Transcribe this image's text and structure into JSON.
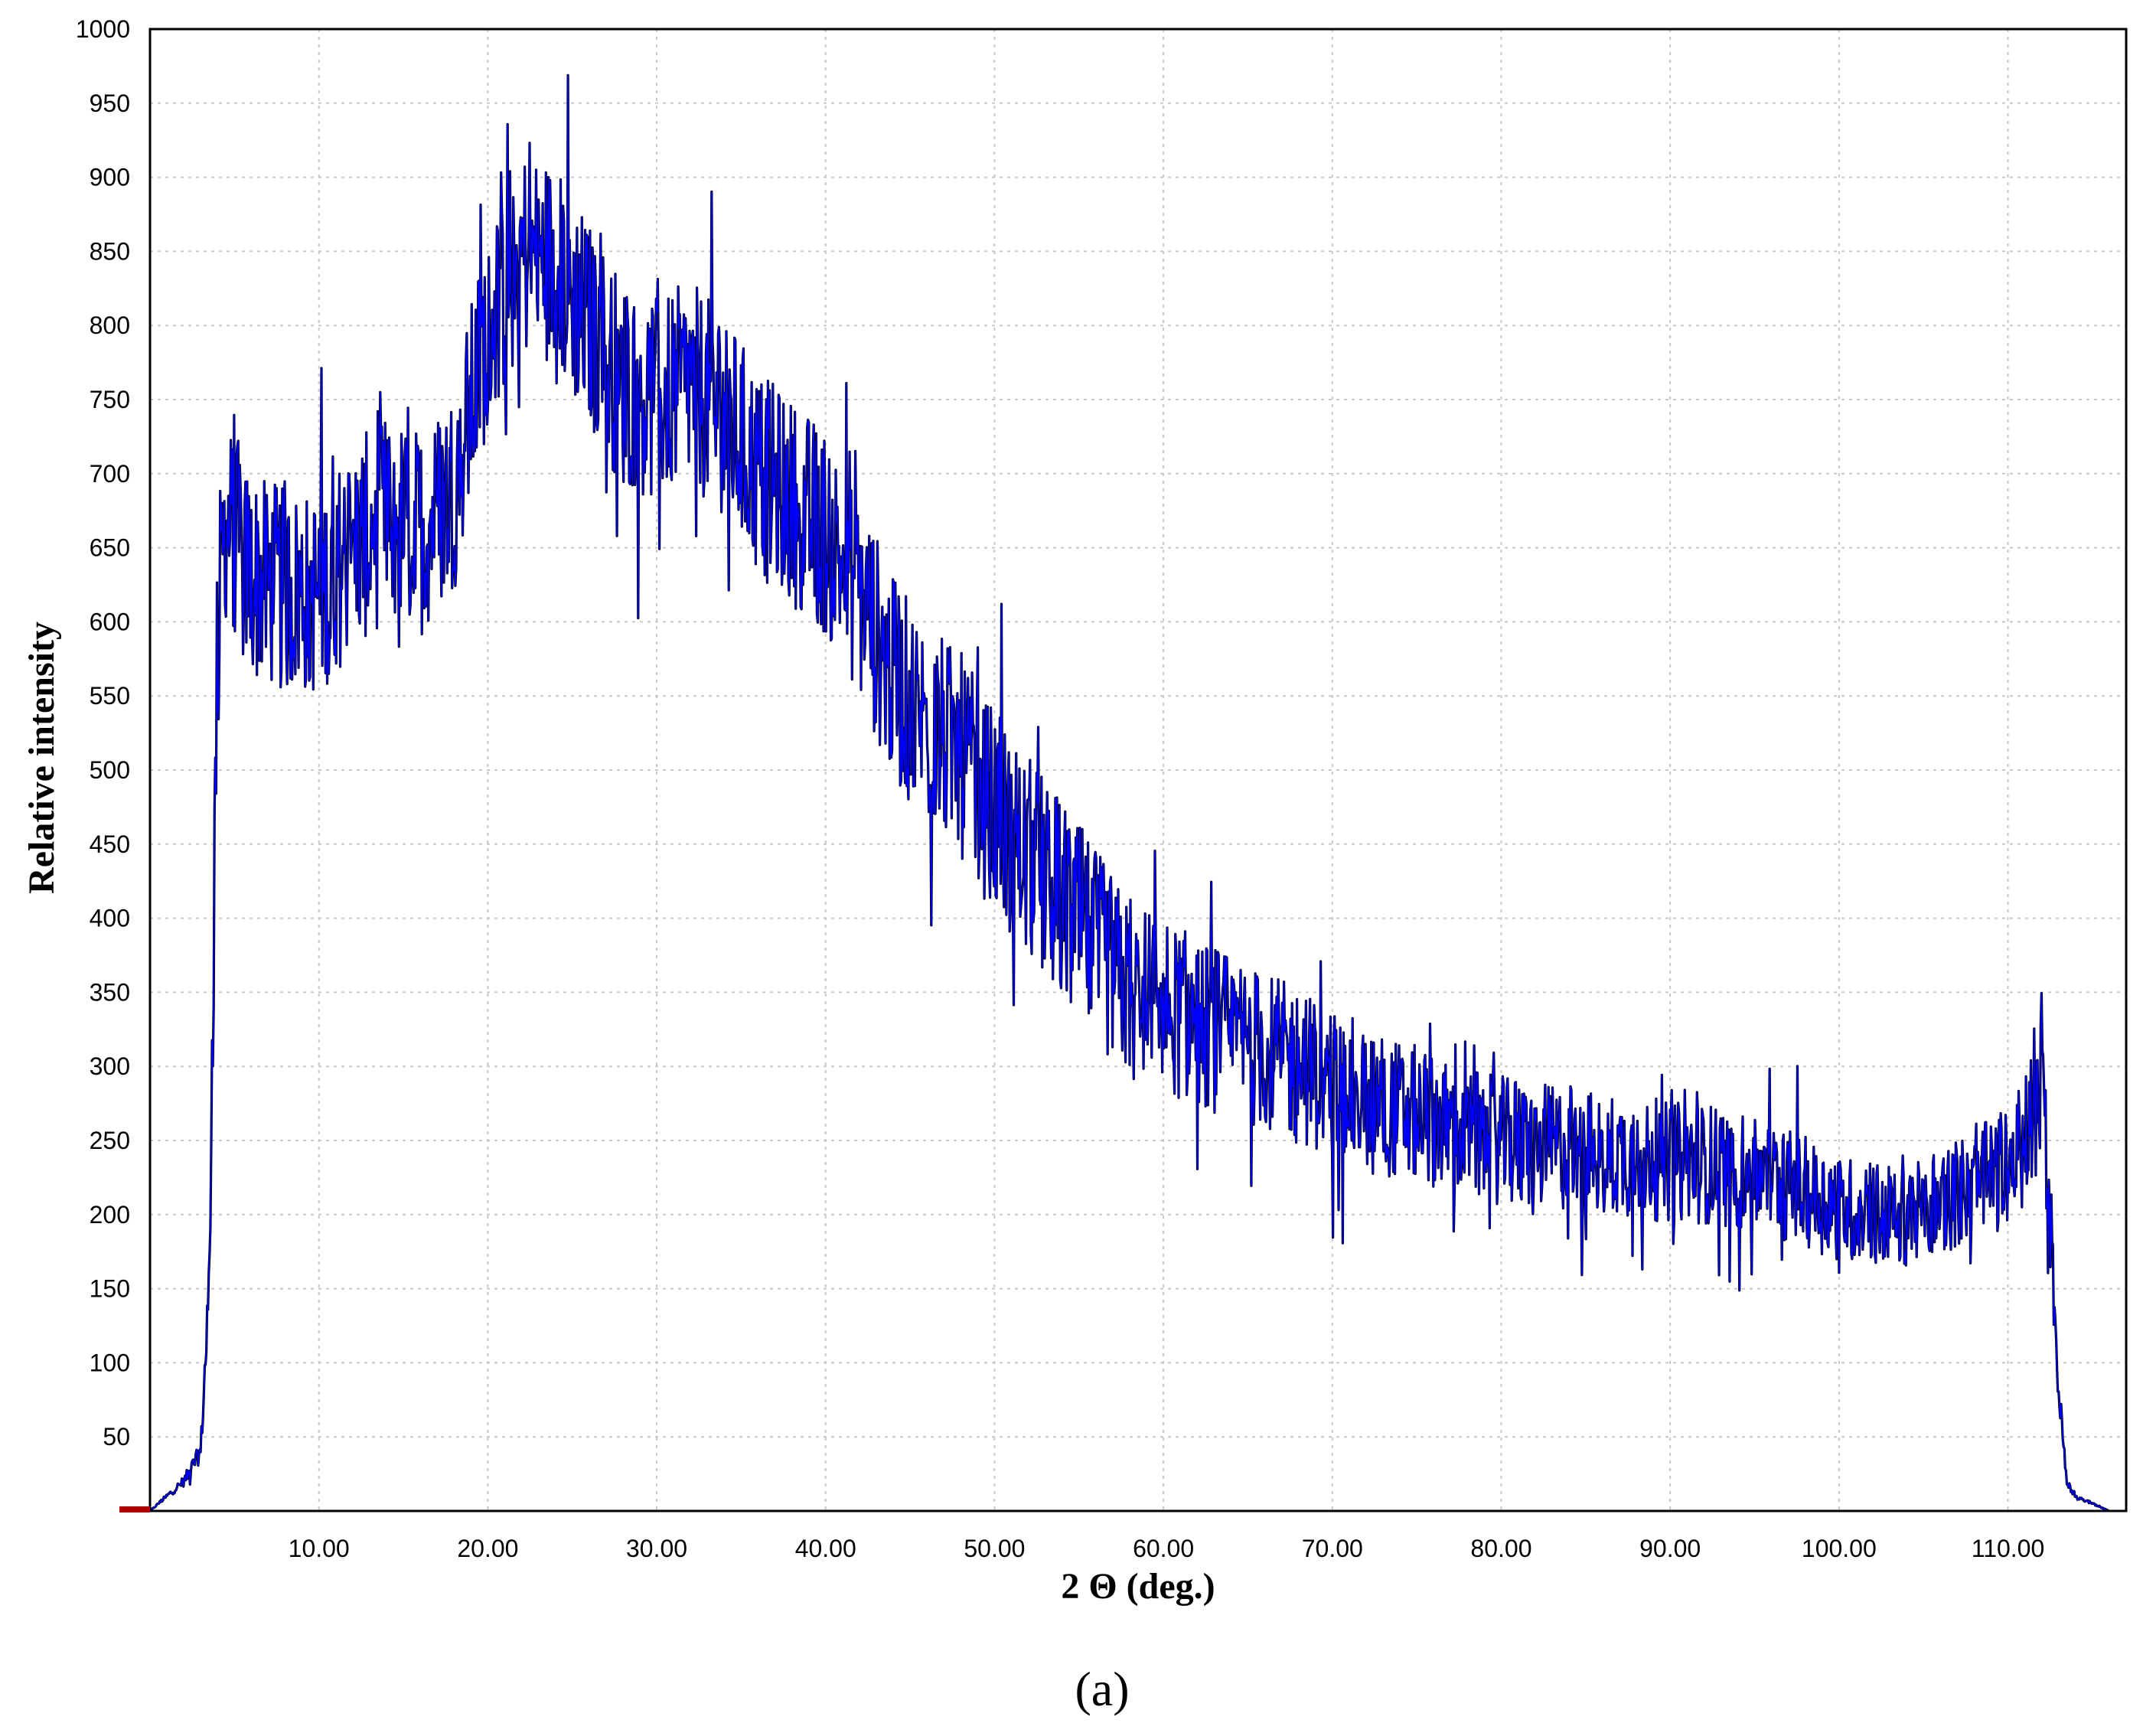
{
  "colors": {
    "line": "#0000ff",
    "outline": "#000000",
    "grid": "#c8c8c8",
    "marker": "#b00000"
  },
  "caption": "(a)",
  "chart_data": {
    "type": "line",
    "title": "",
    "xlabel": "2 Θ (deg.)",
    "ylabel": "Relative intensity",
    "xlim": [
      0,
      117
    ],
    "ylim": [
      0,
      1000
    ],
    "grid": true,
    "x_ticks": [
      "10.00",
      "20.00",
      "30.00",
      "40.00",
      "50.00",
      "60.00",
      "70.00",
      "80.00",
      "90.00",
      "100.00",
      "110.00"
    ],
    "y_ticks": [
      "50",
      "100",
      "150",
      "200",
      "250",
      "300",
      "350",
      "400",
      "450",
      "500",
      "550",
      "600",
      "650",
      "700",
      "750",
      "800",
      "850",
      "900",
      "950",
      "1000"
    ],
    "series": [
      {
        "x": [
          0,
          1,
          2,
          3,
          3.5,
          4,
          4.5,
          5,
          6,
          8,
          10,
          12,
          14,
          16,
          18,
          20,
          22,
          24,
          26,
          28,
          30,
          32,
          34,
          36,
          38,
          40,
          42,
          44,
          46,
          48,
          50,
          52,
          54,
          56,
          58,
          60,
          62,
          64,
          66,
          68,
          70,
          72,
          74,
          76,
          78,
          80,
          82,
          84,
          86,
          88,
          90,
          92,
          94,
          96,
          98,
          100,
          102,
          104,
          106,
          108,
          110,
          111,
          112,
          112.5,
          113,
          113.5,
          114,
          115,
          116
        ],
        "y": [
          0,
          10,
          20,
          40,
          150,
          600,
          670,
          660,
          630,
          620,
          620,
          650,
          670,
          660,
          690,
          800,
          850,
          840,
          800,
          760,
          750,
          760,
          740,
          700,
          680,
          660,
          620,
          560,
          530,
          510,
          470,
          440,
          410,
          380,
          350,
          340,
          330,
          320,
          310,
          300,
          290,
          280,
          270,
          265,
          255,
          250,
          245,
          245,
          240,
          240,
          235,
          235,
          230,
          225,
          215,
          205,
          200,
          200,
          210,
          220,
          230,
          250,
          290,
          200,
          80,
          20,
          10,
          5,
          0
        ],
        "noise_amplitude": 70
      }
    ]
  }
}
